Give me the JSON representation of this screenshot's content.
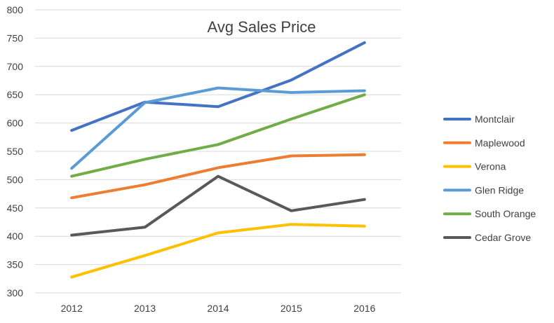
{
  "chart_data": {
    "type": "line",
    "title": "Avg Sales Price",
    "xlabel": "",
    "ylabel": "",
    "categories": [
      "2012",
      "2013",
      "2014",
      "2015",
      "2016"
    ],
    "ylim": [
      300,
      800
    ],
    "yticks": [
      300,
      350,
      400,
      450,
      500,
      550,
      600,
      650,
      700,
      750,
      800
    ],
    "grid": true,
    "legend_position": "right",
    "series": [
      {
        "name": "Montclair",
        "color": "#4472C4",
        "values": [
          587,
          637,
          629,
          676,
          742
        ]
      },
      {
        "name": "Maplewood",
        "color": "#ED7D31",
        "values": [
          468,
          491,
          521,
          542,
          544
        ]
      },
      {
        "name": "Verona",
        "color": "#FFC000",
        "values": [
          328,
          366,
          406,
          421,
          418
        ]
      },
      {
        "name": "Glen Ridge",
        "color": "#5B9BD5",
        "values": [
          520,
          636,
          662,
          654,
          657
        ]
      },
      {
        "name": "South Orange",
        "color": "#70AD47",
        "values": [
          506,
          536,
          562,
          607,
          650
        ]
      },
      {
        "name": "Cedar Grove",
        "color": "#595959",
        "values": [
          402,
          416,
          506,
          445,
          465
        ]
      }
    ]
  }
}
